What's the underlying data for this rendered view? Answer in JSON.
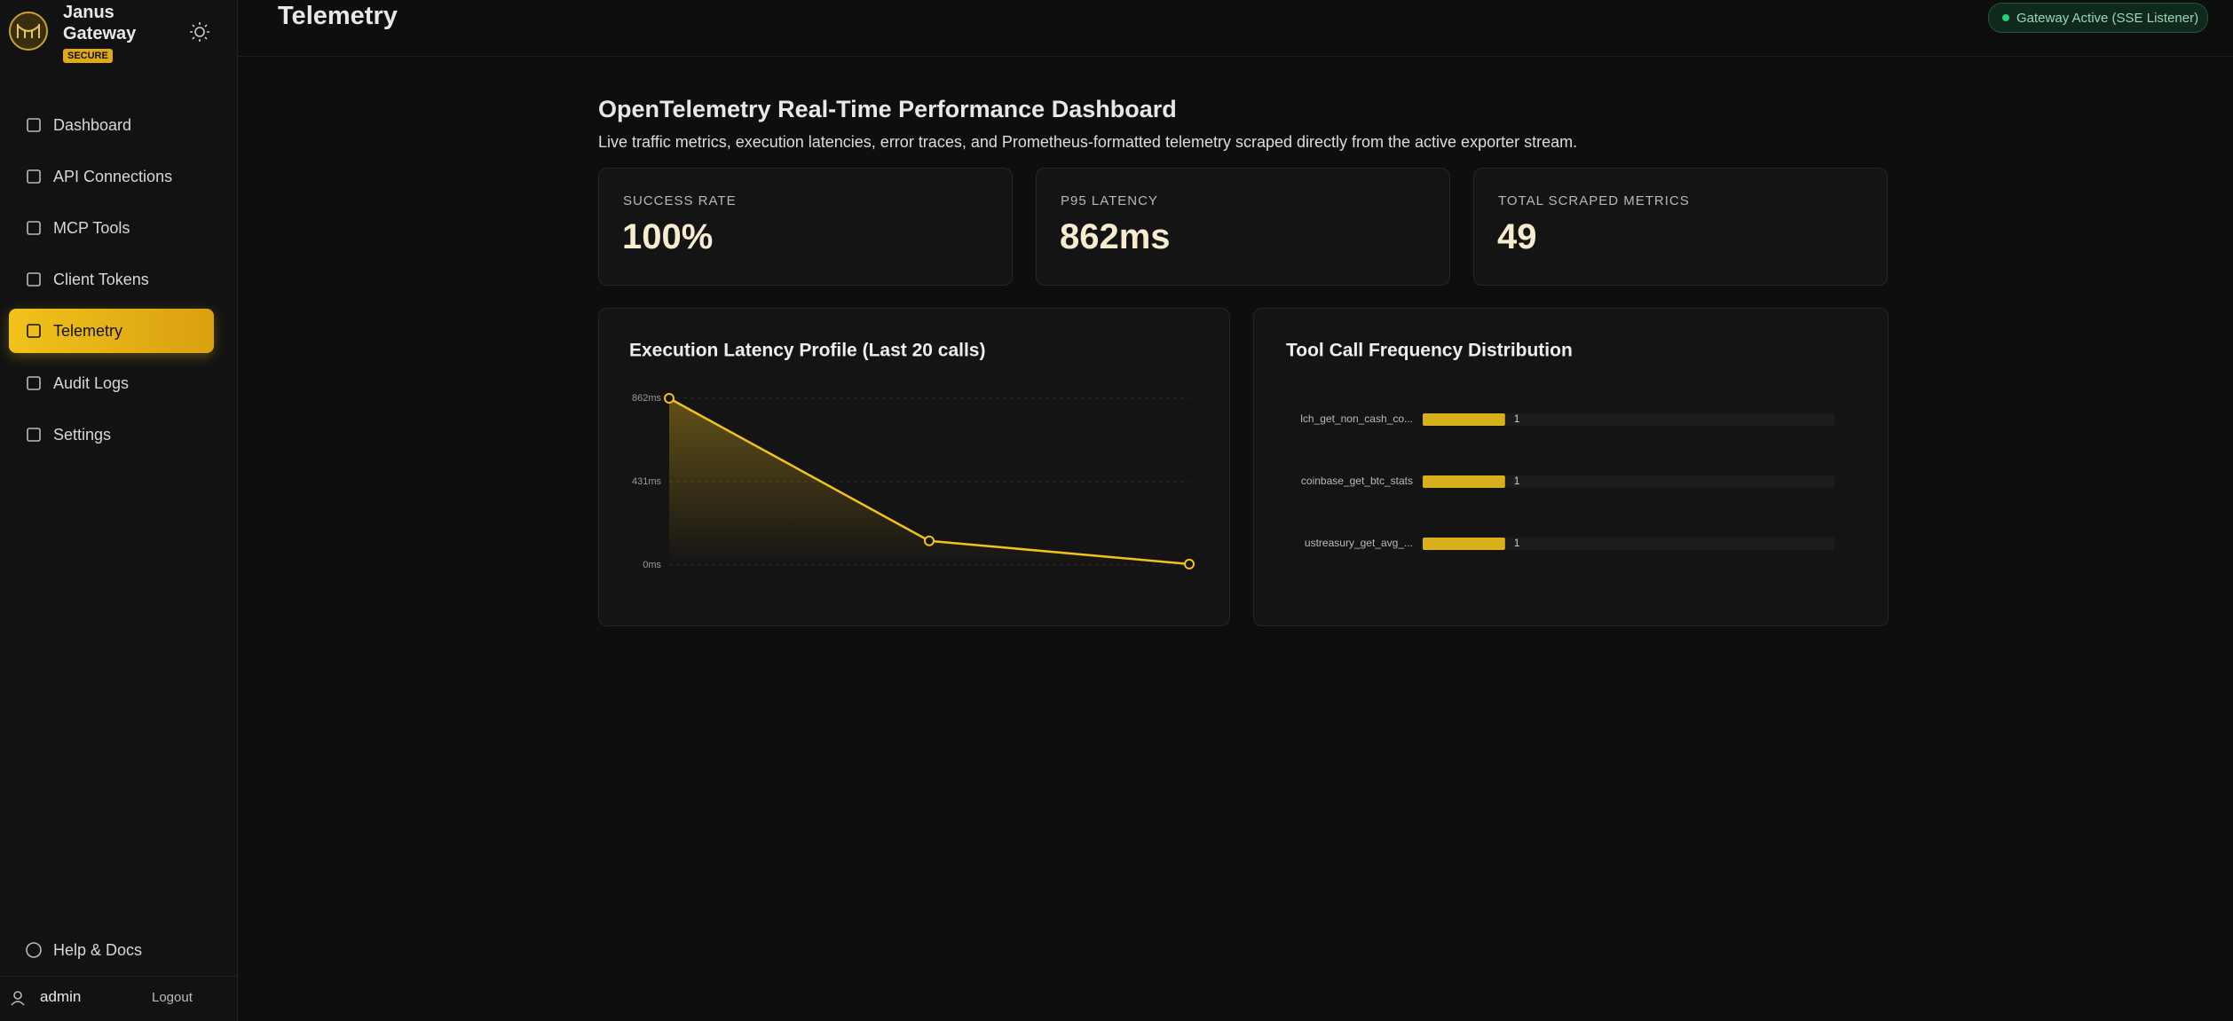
{
  "sidebar": {
    "brand": "Janus Gateway",
    "badge": "SECURE",
    "nav": [
      "Dashboard",
      "API Connections",
      "MCP Tools",
      "Client Tokens",
      "Telemetry",
      "Audit Logs",
      "Settings"
    ],
    "help": "Help & Docs",
    "user": "admin",
    "logout": "Logout"
  },
  "header": {
    "title": "Telemetry",
    "status": "Gateway Active (SSE Listener)"
  },
  "page": {
    "title": "OpenTelemetry Real-Time Performance Dashboard",
    "subtitle": "Live traffic metrics, execution latencies, error traces, and Prometheus-formatted telemetry scraped directly from the active exporter stream."
  },
  "stats": [
    {
      "label": "SUCCESS RATE",
      "value": "100%"
    },
    {
      "label": "P95 LATENCY",
      "value": "862ms"
    },
    {
      "label": "TOTAL SCRAPED METRICS",
      "value": 49
    }
  ],
  "chart_data": [
    {
      "type": "line",
      "title": "Execution Latency Profile (Last 20 calls)",
      "values": [
        862,
        125,
        5
      ],
      "color": "#f2c21b",
      "ylim": [
        0,
        862
      ],
      "yticks": [
        {
          "value": 0,
          "label": "0ms"
        },
        {
          "value": 431,
          "label": "431ms"
        },
        {
          "value": 862,
          "label": "862ms"
        }
      ],
      "grid": true
    },
    {
      "type": "hbar",
      "title": "Tool Call Frequency Distribution",
      "categories": [
        "lch_get_non_cash_co...",
        "coinbase_get_btc_stats",
        "ustreasury_get_avg_..."
      ],
      "values": [
        1,
        1,
        1
      ],
      "color": "#d8b01c",
      "xlim": [
        0,
        5
      ]
    }
  ]
}
